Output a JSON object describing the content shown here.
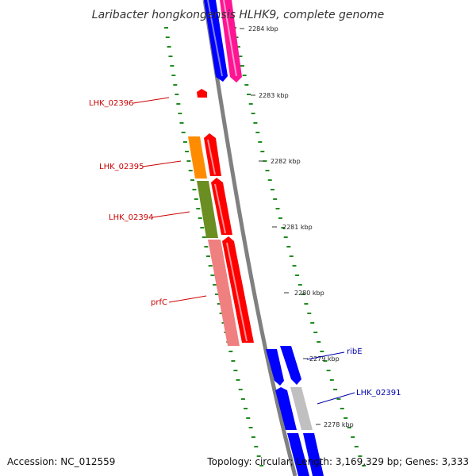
{
  "title": "Laribacter hongkongensis HLHK9, complete genome",
  "footer": {
    "accession": "Accession: NC_012559",
    "stats": "Topology: circular; Length: 3,169,329 bp; Genes: 3,333"
  },
  "ticks": [
    "2284 kbp",
    "2283 kbp",
    "2282 kbp",
    "2281 kbp",
    "2280 kbp",
    "2279 kbp",
    "2278 kbp"
  ],
  "labels": [
    {
      "text": "LHK_02396",
      "color": "#cc0000"
    },
    {
      "text": "LHK_02395",
      "color": "#cc0000"
    },
    {
      "text": "LHK_02394",
      "color": "#cc0000"
    },
    {
      "text": "prfC",
      "color": "#cc0000"
    },
    {
      "text": "ribE",
      "color": "#0000aa"
    },
    {
      "text": "LHK_02391",
      "color": "#0000aa"
    }
  ],
  "colors": {
    "backbone": "#808080",
    "forward_cds": "#ff0000",
    "reverse_cds": "#0000ff",
    "magenta_feature": "#ff1493",
    "orange_feature": "#ff8c00",
    "olive_feature": "#6b8e23",
    "pink_feature": "#f08080",
    "grey_feature": "#c0c0c0",
    "gc_dots": "#228b22"
  }
}
